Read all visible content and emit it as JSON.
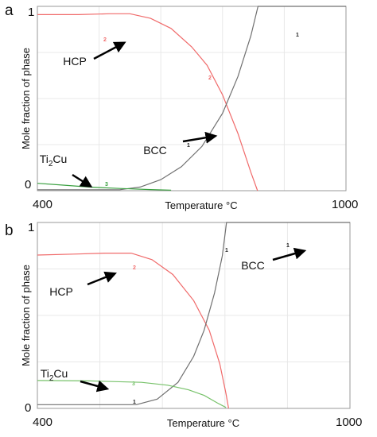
{
  "chart_data": [
    {
      "panel": "a",
      "type": "line",
      "xlabel": "Temperature °C",
      "ylabel": "Mole fraction of phase",
      "xlim": [
        400,
        1000
      ],
      "ylim": [
        0,
        1
      ],
      "x_ticks": [
        "400",
        "1000"
      ],
      "y_ticks": [
        "0",
        "1"
      ],
      "grid": true,
      "series": [
        {
          "label": "2",
          "color": "#f06a6a",
          "points": [
            [
              400,
              0.955
            ],
            [
              480,
              0.955
            ],
            [
              540,
              0.96
            ],
            [
              580,
              0.96
            ],
            [
              620,
              0.935
            ],
            [
              660,
              0.88
            ],
            [
              700,
              0.78
            ],
            [
              730,
              0.68
            ],
            [
              760,
              0.52
            ],
            [
              790,
              0.31
            ],
            [
              815,
              0.1
            ],
            [
              828,
              0
            ]
          ]
        },
        {
          "label": "1",
          "color": "#707070",
          "points": [
            [
              400,
              0.005
            ],
            [
              560,
              0.005
            ],
            [
              600,
              0.02
            ],
            [
              640,
              0.06
            ],
            [
              680,
              0.13
            ],
            [
              720,
              0.24
            ],
            [
              760,
              0.42
            ],
            [
              790,
              0.62
            ],
            [
              815,
              0.84
            ],
            [
              829,
              1.0
            ],
            [
              1000,
              1.0
            ]
          ]
        },
        {
          "label": "3",
          "color": "#3aa040",
          "points": [
            [
              400,
              0.04
            ],
            [
              450,
              0.03
            ],
            [
              500,
              0.02
            ],
            [
              560,
              0.012
            ],
            [
              620,
              0.006
            ],
            [
              660,
              0.003
            ]
          ]
        }
      ],
      "annotations": [
        {
          "text": "HCP",
          "arrow": true
        },
        {
          "text": "BCC",
          "arrow": true
        },
        {
          "text": "Ti",
          "sub": "2",
          "text_after": "Cu",
          "arrow": true
        }
      ]
    },
    {
      "panel": "b",
      "type": "line",
      "xlabel": "Temperature °C",
      "ylabel": "Mole fraction of phase",
      "xlim": [
        400,
        1000
      ],
      "ylim": [
        0,
        1
      ],
      "x_ticks": [
        "400",
        "1000"
      ],
      "y_ticks": [
        "0",
        "1"
      ],
      "grid": true,
      "series": [
        {
          "label": "2",
          "color": "#f06a6a",
          "points": [
            [
              400,
              0.825
            ],
            [
              470,
              0.83
            ],
            [
              530,
              0.835
            ],
            [
              580,
              0.835
            ],
            [
              620,
              0.8
            ],
            [
              660,
              0.72
            ],
            [
              700,
              0.58
            ],
            [
              730,
              0.42
            ],
            [
              750,
              0.24
            ],
            [
              762,
              0.08
            ],
            [
              767,
              0
            ]
          ]
        },
        {
          "label": "1",
          "color": "#707070",
          "points": [
            [
              400,
              0.02
            ],
            [
              590,
              0.02
            ],
            [
              630,
              0.05
            ],
            [
              670,
              0.14
            ],
            [
              700,
              0.28
            ],
            [
              720,
              0.42
            ],
            [
              740,
              0.62
            ],
            [
              755,
              0.82
            ],
            [
              763,
              1.0
            ],
            [
              1000,
              1.0
            ]
          ]
        },
        {
          "label": "3",
          "color": "#77c26a",
          "points": [
            [
              400,
              0.15
            ],
            [
              500,
              0.148
            ],
            [
              600,
              0.14
            ],
            [
              650,
              0.125
            ],
            [
              690,
              0.1
            ],
            [
              720,
              0.07
            ],
            [
              745,
              0.03
            ],
            [
              762,
              0.005
            ]
          ]
        }
      ],
      "annotations": [
        {
          "text": "HCP",
          "arrow": true
        },
        {
          "text": "BCC",
          "arrow": true
        },
        {
          "text": "Ti",
          "sub": "2",
          "text_after": "Cu",
          "arrow": true
        }
      ]
    }
  ]
}
